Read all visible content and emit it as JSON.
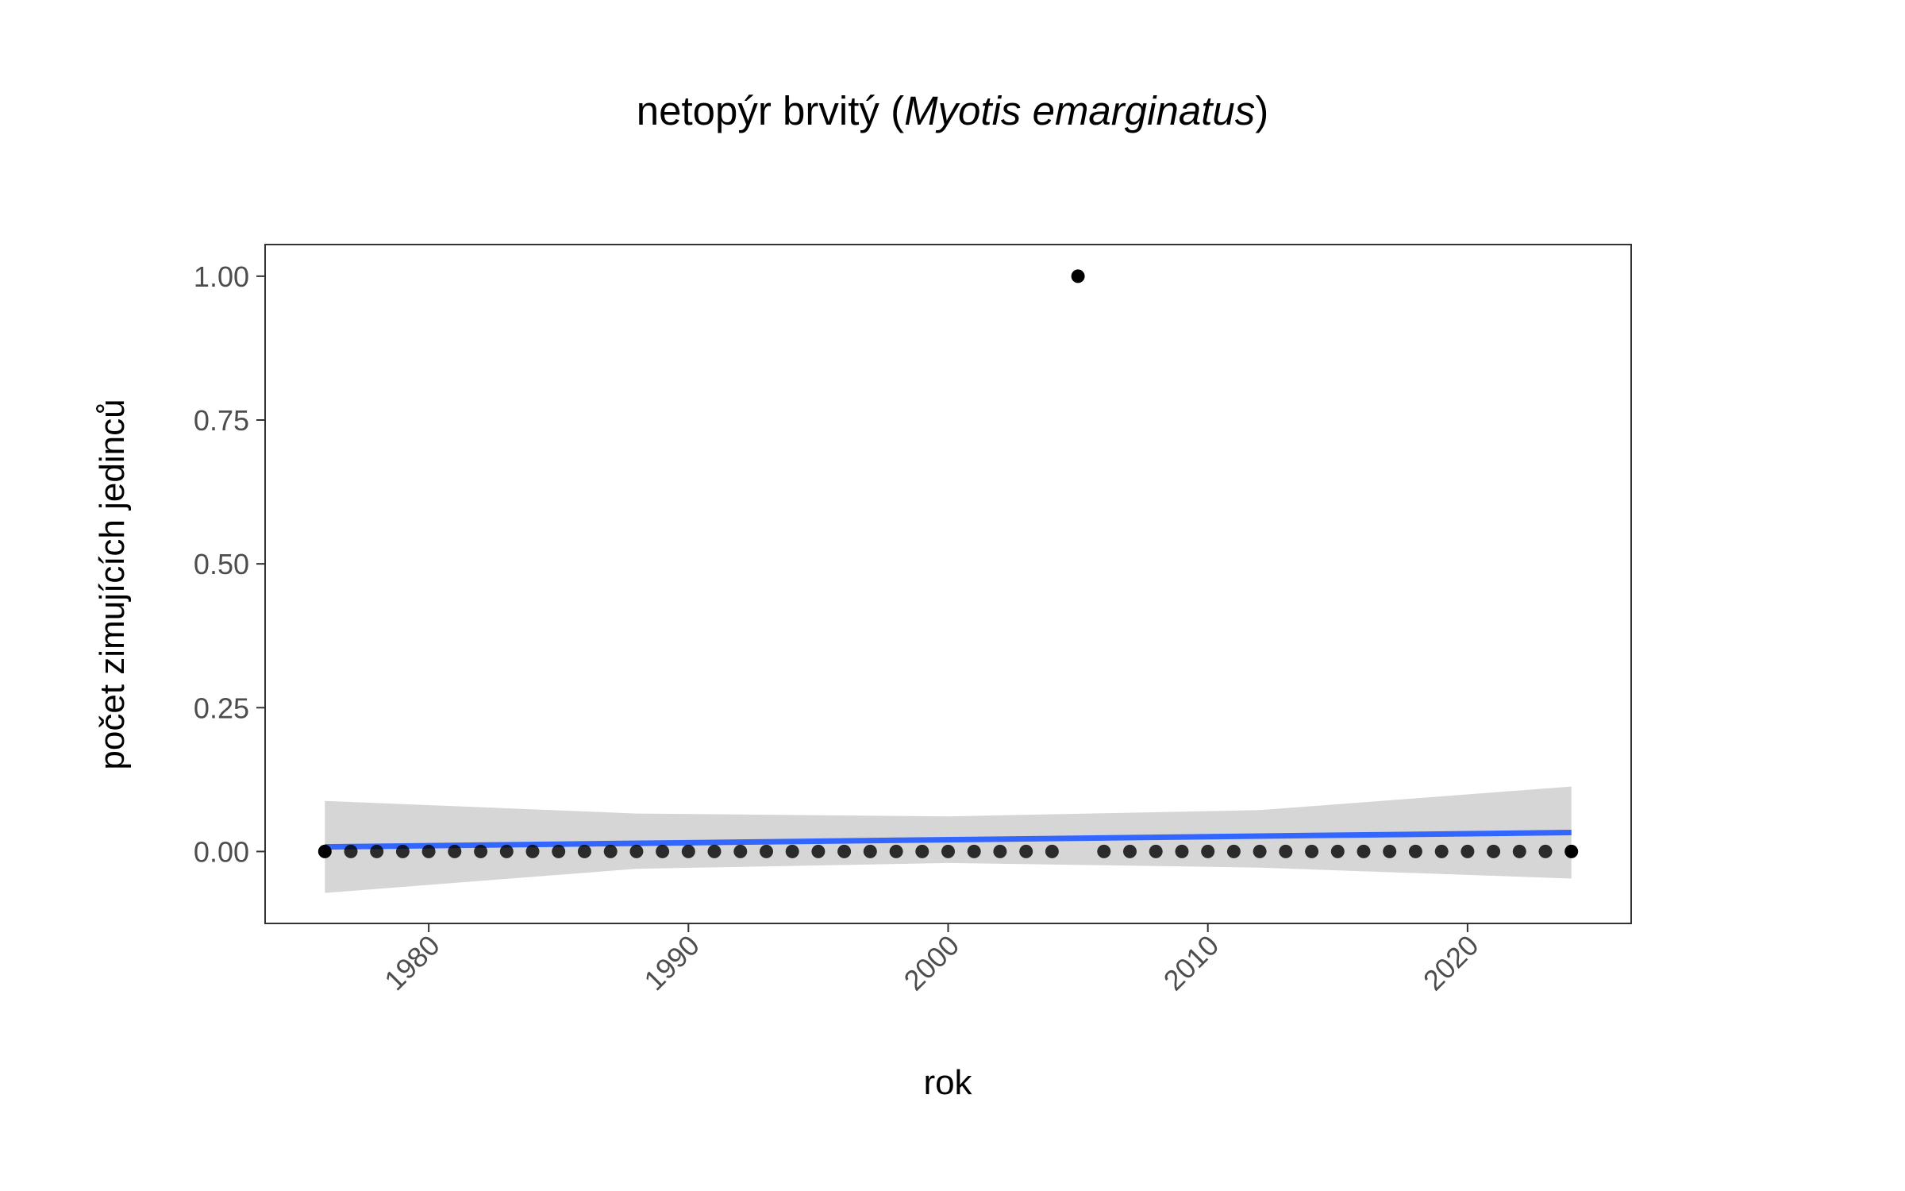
{
  "chart_data": {
    "type": "scatter",
    "title_prefix": "netopýr brvitý (",
    "title_italic": "Myotis emarginatus",
    "title_suffix": ")",
    "xlabel": "rok",
    "ylabel": "počet zimujících jedinců",
    "xlim": [
      1973.7,
      2026.3
    ],
    "ylim": [
      -0.125,
      1.055
    ],
    "x_ticks": [
      1980,
      1990,
      2000,
      2010,
      2020
    ],
    "x_tick_labels": [
      "1980",
      "1990",
      "2000",
      "2010",
      "2020"
    ],
    "y_ticks": [
      0,
      0.25,
      0.5,
      0.75,
      1.0
    ],
    "y_tick_labels": [
      "0.00",
      "0.25",
      "0.50",
      "0.75",
      "1.00"
    ],
    "grid": false,
    "colors": {
      "points": "#000000",
      "trend": "#3366ff",
      "ribbon": "#d6d6d6"
    },
    "series": [
      {
        "type": "scatter",
        "x": [
          1976,
          1977,
          1978,
          1979,
          1980,
          1981,
          1982,
          1983,
          1984,
          1985,
          1986,
          1987,
          1988,
          1989,
          1990,
          1991,
          1992,
          1993,
          1994,
          1995,
          1996,
          1997,
          1998,
          1999,
          2000,
          2001,
          2002,
          2003,
          2004,
          2005,
          2006,
          2007,
          2008,
          2009,
          2010,
          2011,
          2012,
          2013,
          2014,
          2015,
          2016,
          2017,
          2018,
          2019,
          2020,
          2021,
          2022,
          2023,
          2024
        ],
        "y": [
          0,
          0,
          0,
          0,
          0,
          0,
          0,
          0,
          0,
          0,
          0,
          0,
          0,
          0,
          0,
          0,
          0,
          0,
          0,
          0,
          0,
          0,
          0,
          0,
          0,
          0,
          0,
          0,
          0,
          1,
          0,
          0,
          0,
          0,
          0,
          0,
          0,
          0,
          0,
          0,
          0,
          0,
          0,
          0,
          0,
          0,
          0,
          0,
          0
        ]
      },
      {
        "type": "line",
        "x": [
          1976,
          2024
        ],
        "y": [
          0.008,
          0.033
        ]
      },
      {
        "type": "area",
        "x": [
          1976,
          1988,
          2000,
          2012,
          2024
        ],
        "y_lower": [
          -0.072,
          -0.03,
          -0.02,
          -0.028,
          -0.047
        ],
        "y_upper": [
          0.088,
          0.066,
          0.061,
          0.072,
          0.113
        ]
      }
    ]
  }
}
